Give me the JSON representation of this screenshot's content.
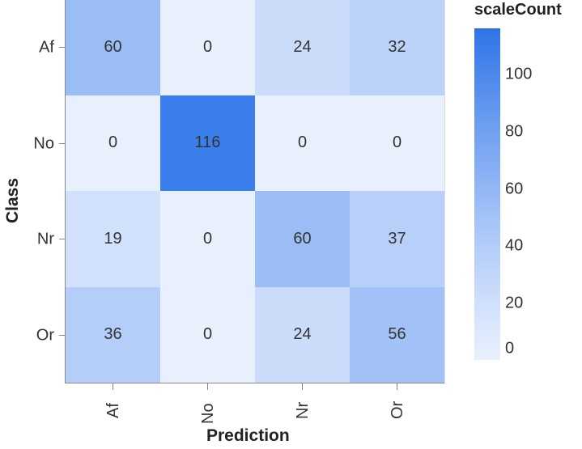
{
  "chart_data": {
    "type": "heatmap",
    "title": "",
    "xlabel": "Prediction",
    "ylabel": "Class",
    "x_categories": [
      "Af",
      "No",
      "Nr",
      "Or"
    ],
    "y_categories": [
      "Af",
      "No",
      "Nr",
      "Or"
    ],
    "values": [
      [
        60,
        0,
        24,
        32
      ],
      [
        0,
        116,
        0,
        0
      ],
      [
        19,
        0,
        60,
        37
      ],
      [
        36,
        0,
        24,
        56
      ]
    ],
    "colors": [
      [
        "#9bbdf6",
        "#e9f0fd",
        "#cadcfa",
        "#bbd2f9"
      ],
      [
        "#e9f0fd",
        "#3b7fec",
        "#e9f0fd",
        "#e9f0fd"
      ],
      [
        "#d1e1fb",
        "#e9f0fd",
        "#9bbdf6",
        "#b7cff9"
      ],
      [
        "#b5cdf9",
        "#e9f0fd",
        "#cadcfa",
        "#a2c2f7"
      ]
    ],
    "legend": {
      "title": "scaleCount",
      "position": "right",
      "type": "gradient",
      "range": [
        0,
        116
      ],
      "ticks": [
        "100",
        "80",
        "60",
        "40",
        "20",
        "0"
      ],
      "color_low": "#e9f0fd",
      "color_high": "#2f74e8"
    },
    "grid": false
  }
}
